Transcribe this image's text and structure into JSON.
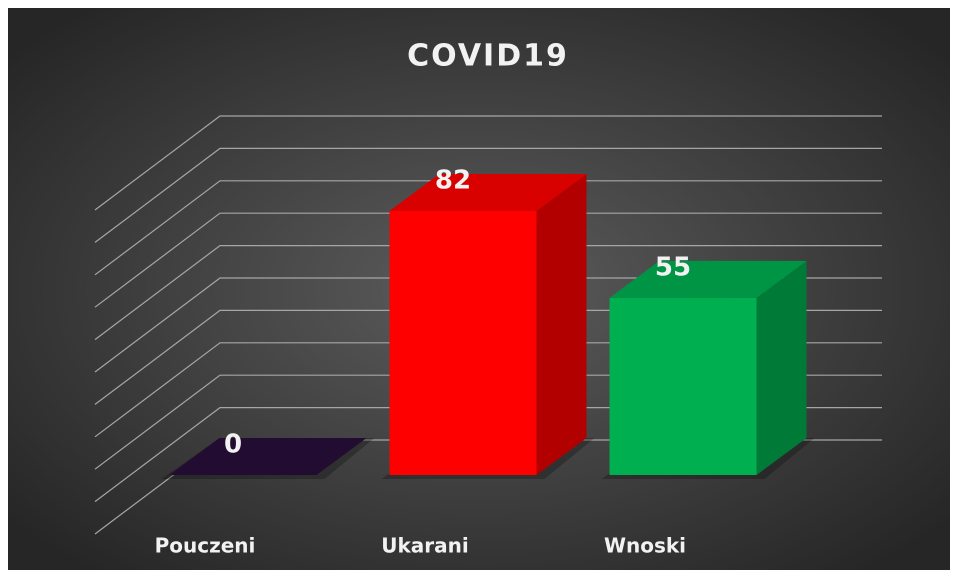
{
  "chart_data": {
    "type": "bar3d",
    "title": "COVID19",
    "categories": [
      "Pouczeni",
      "Ukarani",
      "Wnoski"
    ],
    "values": [
      0,
      82,
      55
    ],
    "colors": [
      "#2a0f3a",
      "#ff0000",
      "#00b050"
    ],
    "ylim": [
      0,
      100
    ],
    "yticks": [
      0,
      10,
      20,
      30,
      40,
      50,
      60,
      70,
      80,
      90,
      100
    ],
    "grid": true
  }
}
